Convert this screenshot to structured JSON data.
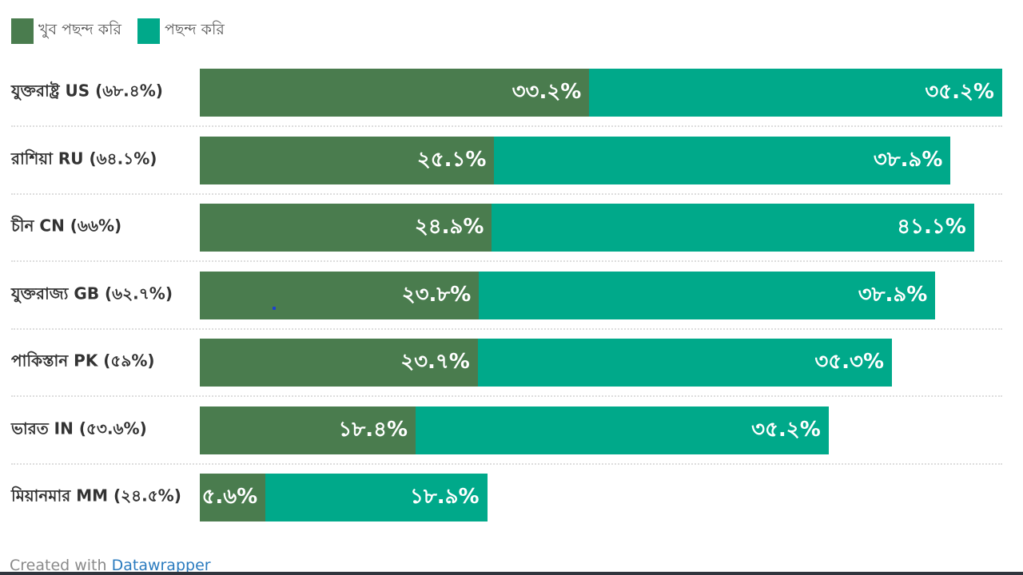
{
  "colors": {
    "very_much": "#4a7c4e",
    "like": "#00a98a"
  },
  "chart_data": {
    "type": "bar",
    "orientation": "horizontal",
    "stacked": true,
    "legend": [
      {
        "name": "খুব পছন্দ করি",
        "color": "#4a7c4e"
      },
      {
        "name": "পছন্দ করি",
        "color": "#00a98a"
      }
    ],
    "legend_placement": "top-left",
    "categories": [
      "যুক্তরাষ্ট্র US (৬৮.৪%)",
      "রাশিয়া RU (৬৪.১%)",
      "চীন CN (৬৬%)",
      "যুক্তরাজ্য GB (৬২.৭%)",
      "পাকিস্তান PK (৫৯%)",
      "ভারত IN (৫৩.৬%)",
      "মিয়ানমার MM (২৪.৫%)"
    ],
    "series": [
      {
        "name": "খুব পছন্দ করি",
        "values": [
          33.2,
          25.1,
          24.9,
          23.8,
          23.7,
          18.4,
          5.6
        ],
        "labels": [
          "৩৩.২%",
          "২৫.১%",
          "২৪.৯%",
          "২৩.৮%",
          "২৩.৭%",
          "১৮.৪%",
          "৫.৬%"
        ]
      },
      {
        "name": "পছন্দ করি",
        "values": [
          35.2,
          38.9,
          41.1,
          38.9,
          35.3,
          35.2,
          18.9
        ],
        "labels": [
          "৩৫.২%",
          "৩৮.৯%",
          "৪১.১%",
          "৩৮.৯%",
          "৩৫.৩%",
          "৩৫.২%",
          "১৮.৯%"
        ]
      }
    ],
    "xlim": [
      0,
      68.4
    ],
    "grid": false
  },
  "footer": {
    "prefix": "Created with ",
    "link": "Datawrapper"
  }
}
